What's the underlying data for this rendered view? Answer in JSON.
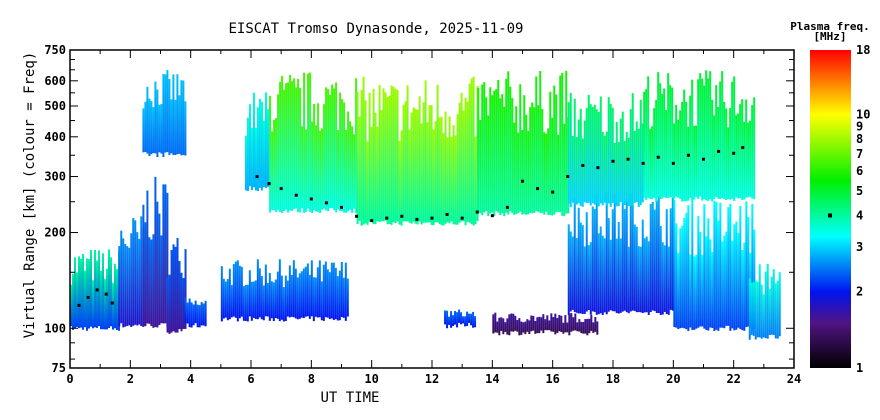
{
  "chart_data": {
    "type": "heatmap",
    "title": "EISCAT Tromso Dynasonde, 2025-11-09",
    "xlabel": "UT TIME",
    "ylabel": "Virtual Range [km] (colour = Freq)",
    "xlim": [
      0,
      24
    ],
    "ylim": [
      75,
      750
    ],
    "yscale": "log",
    "x_ticks": [
      "0",
      "2",
      "4",
      "6",
      "8",
      "10",
      "12",
      "14",
      "16",
      "18",
      "20",
      "22",
      "24"
    ],
    "y_ticks": [
      "75",
      "100",
      "200",
      "300",
      "400",
      "500",
      "600",
      "750"
    ],
    "colorbar": {
      "label_line1": "Plasma freq.",
      "label_line2": "[MHz]",
      "range": [
        1,
        18
      ],
      "ticks": [
        "1",
        "2",
        "3",
        "4",
        "5",
        "6",
        "7",
        "8",
        "9",
        "10",
        "18"
      ],
      "marker_value": 4
    },
    "regions": [
      {
        "t0": 0.0,
        "t1": 1.6,
        "h0": 98,
        "h1": 180,
        "f_bottom": 2.2,
        "f_top": 4.0
      },
      {
        "t0": 1.6,
        "t1": 2.4,
        "h0": 100,
        "h1": 230,
        "f_bottom": 1.8,
        "f_top": 2.6
      },
      {
        "t0": 2.4,
        "t1": 3.2,
        "h0": 100,
        "h1": 300,
        "f_bottom": 1.6,
        "f_top": 2.4
      },
      {
        "t0": 3.2,
        "t1": 3.8,
        "h0": 96,
        "h1": 200,
        "f_bottom": 1.6,
        "f_top": 2.3
      },
      {
        "t0": 2.4,
        "t1": 3.8,
        "h0": 345,
        "h1": 650,
        "f_bottom": 2.4,
        "f_top": 2.9
      },
      {
        "t0": 3.8,
        "t1": 4.5,
        "h0": 100,
        "h1": 125,
        "f_bottom": 2.0,
        "f_top": 2.4
      },
      {
        "t0": 5.0,
        "t1": 9.2,
        "h0": 105,
        "h1": 165,
        "f_bottom": 2.0,
        "f_top": 2.6
      },
      {
        "t0": 5.8,
        "t1": 6.6,
        "h0": 270,
        "h1": 560,
        "f_bottom": 2.8,
        "f_top": 3.5
      },
      {
        "t0": 6.6,
        "t1": 9.5,
        "h0": 230,
        "h1": 650,
        "f_bottom": 3.5,
        "f_top": 6.5
      },
      {
        "t0": 9.5,
        "t1": 13.5,
        "h0": 210,
        "h1": 620,
        "f_bottom": 4.0,
        "f_top": 8.0
      },
      {
        "t0": 13.5,
        "t1": 16.5,
        "h0": 225,
        "h1": 650,
        "f_bottom": 4.0,
        "f_top": 5.8
      },
      {
        "t0": 12.4,
        "t1": 13.4,
        "h0": 100,
        "h1": 115,
        "f_bottom": 2.0,
        "f_top": 2.4
      },
      {
        "t0": 14.0,
        "t1": 17.5,
        "h0": 95,
        "h1": 112,
        "f_bottom": 1.3,
        "f_top": 1.6
      },
      {
        "t0": 16.5,
        "t1": 20.0,
        "h0": 110,
        "h1": 270,
        "f_bottom": 1.9,
        "f_top": 2.8
      },
      {
        "t0": 20.0,
        "t1": 22.7,
        "h0": 98,
        "h1": 260,
        "f_bottom": 2.2,
        "f_top": 3.3
      },
      {
        "t0": 16.5,
        "t1": 19.0,
        "h0": 240,
        "h1": 560,
        "f_bottom": 3.0,
        "f_top": 4.5
      },
      {
        "t0": 19.0,
        "t1": 22.7,
        "h0": 250,
        "h1": 650,
        "f_bottom": 3.5,
        "f_top": 5.0
      },
      {
        "t0": 22.5,
        "t1": 23.5,
        "h0": 92,
        "h1": 160,
        "f_bottom": 2.5,
        "f_top": 3.5
      }
    ],
    "trace": [
      [
        0.3,
        118
      ],
      [
        0.6,
        125
      ],
      [
        0.9,
        132
      ],
      [
        1.2,
        128
      ],
      [
        1.4,
        120
      ],
      [
        6.2,
        300
      ],
      [
        6.6,
        285
      ],
      [
        7.0,
        275
      ],
      [
        7.5,
        262
      ],
      [
        8.0,
        255
      ],
      [
        8.5,
        248
      ],
      [
        9.0,
        240
      ],
      [
        9.5,
        225
      ],
      [
        10.0,
        218
      ],
      [
        10.5,
        222
      ],
      [
        11.0,
        225
      ],
      [
        11.5,
        220
      ],
      [
        12.0,
        222
      ],
      [
        12.5,
        228
      ],
      [
        13.0,
        222
      ],
      [
        13.5,
        232
      ],
      [
        14.0,
        226
      ],
      [
        14.5,
        240
      ],
      [
        15.0,
        290
      ],
      [
        15.5,
        275
      ],
      [
        16.0,
        268
      ],
      [
        16.5,
        300
      ],
      [
        17.0,
        325
      ],
      [
        17.5,
        320
      ],
      [
        18.0,
        335
      ],
      [
        18.5,
        340
      ],
      [
        19.0,
        330
      ],
      [
        19.5,
        345
      ],
      [
        20.0,
        330
      ],
      [
        20.5,
        350
      ],
      [
        21.0,
        340
      ],
      [
        21.5,
        360
      ],
      [
        22.0,
        355
      ],
      [
        22.3,
        370
      ]
    ]
  }
}
